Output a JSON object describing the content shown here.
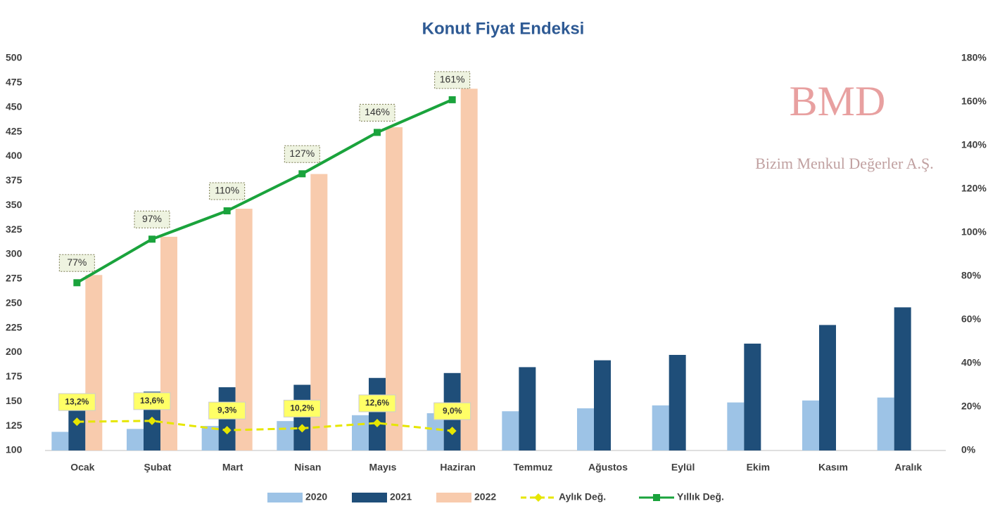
{
  "chart_data": {
    "type": "bar",
    "title": "Konut Fiyat Endeksi",
    "watermark": {
      "logo": "BMD",
      "company": "Bizim Menkul Değerler A.Ş."
    },
    "categories": [
      "Ocak",
      "Şubat",
      "Mart",
      "Nisan",
      "Mayıs",
      "Haziran",
      "Temmuz",
      "Ağustos",
      "Eylül",
      "Ekim",
      "Kasım",
      "Aralık"
    ],
    "series": [
      {
        "name": "2020",
        "color": "#9dc3e6",
        "values": [
          119,
          122,
          125,
          130,
          136,
          138,
          140,
          143,
          146,
          149,
          151,
          154
        ]
      },
      {
        "name": "2021",
        "color": "#1f4e79",
        "values": [
          155,
          160,
          164.5,
          167,
          174,
          179,
          185,
          192,
          197.5,
          209,
          228,
          246
        ]
      },
      {
        "name": "2022",
        "color": "#f8cbad",
        "values": [
          279,
          318,
          346.6,
          382,
          429.7,
          469,
          null,
          null,
          null,
          null,
          null,
          null
        ]
      },
      {
        "name": "Aylık Değ.",
        "type": "line",
        "axis": "y2",
        "color": "#e6e600",
        "dashed": true,
        "values": [
          13.2,
          13.6,
          9.3,
          10.2,
          12.6,
          9.0,
          null,
          null,
          null,
          null,
          null,
          null
        ],
        "value_labels": [
          "13,2%",
          "13,6%",
          "9,3%",
          "10,2%",
          "12,6%",
          "9,0%",
          null,
          null,
          null,
          null,
          null,
          null
        ]
      },
      {
        "name": "Yıllık Değ.",
        "type": "line",
        "axis": "y2",
        "color": "#1aa33c",
        "values": [
          77,
          97,
          110,
          127,
          146,
          161,
          null,
          null,
          null,
          null,
          null,
          null
        ],
        "value_labels": [
          "77%",
          "97%",
          "110%",
          "127%",
          "146%",
          "161%",
          null,
          null,
          null,
          null,
          null,
          null
        ]
      }
    ],
    "ylim": [
      100,
      500
    ],
    "yticks": [
      100,
      125,
      150,
      175,
      200,
      225,
      250,
      275,
      300,
      325,
      350,
      375,
      400,
      425,
      450,
      475,
      500
    ],
    "y2lim": [
      0,
      180
    ],
    "y2ticks": [
      {
        "value": 0,
        "label": "0%"
      },
      {
        "value": 20,
        "label": "20%"
      },
      {
        "value": 40,
        "label": "40%"
      },
      {
        "value": 60,
        "label": "60%"
      },
      {
        "value": 80,
        "label": "80%"
      },
      {
        "value": 100,
        "label": "100%"
      },
      {
        "value": 120,
        "label": "120%"
      },
      {
        "value": 140,
        "label": "140%"
      },
      {
        "value": 160,
        "label": "160%"
      },
      {
        "value": 180,
        "label": "180%"
      }
    ],
    "legend": "bottom"
  }
}
